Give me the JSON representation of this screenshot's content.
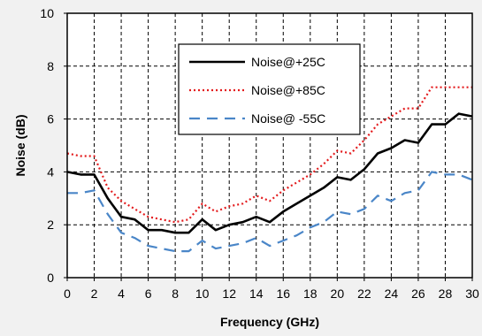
{
  "chart_data": {
    "type": "line",
    "xlabel": "Frequency (GHz)",
    "ylabel": "Noise (dB)",
    "xlim": [
      0,
      30
    ],
    "ylim": [
      0,
      10
    ],
    "x_ticks": [
      "0",
      "2",
      "4",
      "6",
      "8",
      "10",
      "12",
      "14",
      "16",
      "18",
      "20",
      "22",
      "24",
      "26",
      "28",
      "30"
    ],
    "y_ticks": [
      "0",
      "2",
      "4",
      "6",
      "8",
      "10"
    ],
    "grid": true,
    "legend_position": "top-center",
    "series": [
      {
        "name": "Noise@+25C",
        "color": "#000000",
        "style": "solid",
        "x": [
          0,
          1,
          2,
          3,
          4,
          5,
          6,
          7,
          8,
          9,
          10,
          11,
          12,
          13,
          14,
          15,
          16,
          17,
          18,
          19,
          20,
          21,
          22,
          23,
          24,
          25,
          26,
          27,
          28,
          29,
          30
        ],
        "y": [
          4.0,
          3.9,
          3.9,
          3.0,
          2.3,
          2.2,
          1.8,
          1.8,
          1.7,
          1.7,
          2.2,
          1.8,
          2.0,
          2.1,
          2.3,
          2.1,
          2.5,
          2.8,
          3.1,
          3.4,
          3.8,
          3.7,
          4.1,
          4.7,
          4.9,
          5.2,
          5.1,
          5.8,
          5.8,
          6.2,
          6.1
        ]
      },
      {
        "name": "Noise@+85C",
        "color": "#e31a1c",
        "style": "dotted",
        "x": [
          0,
          1,
          2,
          3,
          4,
          5,
          6,
          7,
          8,
          9,
          10,
          11,
          12,
          13,
          14,
          15,
          16,
          17,
          18,
          19,
          20,
          21,
          22,
          23,
          24,
          25,
          26,
          27,
          28,
          29,
          30
        ],
        "y": [
          4.7,
          4.6,
          4.6,
          3.4,
          2.9,
          2.6,
          2.3,
          2.2,
          2.1,
          2.2,
          2.8,
          2.5,
          2.7,
          2.8,
          3.1,
          2.9,
          3.3,
          3.6,
          3.9,
          4.3,
          4.8,
          4.7,
          5.2,
          5.8,
          6.1,
          6.4,
          6.4,
          7.2,
          7.2,
          7.2,
          7.2
        ]
      },
      {
        "name": "Noise@ -55C",
        "color": "#4a86c8",
        "style": "dashed",
        "x": [
          0,
          1,
          2,
          3,
          4,
          5,
          6,
          7,
          8,
          9,
          10,
          11,
          12,
          13,
          14,
          15,
          16,
          17,
          18,
          19,
          20,
          21,
          22,
          23,
          24,
          25,
          26,
          27,
          28,
          29,
          30
        ],
        "y": [
          3.2,
          3.2,
          3.3,
          2.4,
          1.7,
          1.5,
          1.2,
          1.1,
          1.0,
          1.0,
          1.4,
          1.1,
          1.2,
          1.3,
          1.5,
          1.2,
          1.4,
          1.6,
          1.9,
          2.1,
          2.5,
          2.4,
          2.6,
          3.1,
          2.9,
          3.2,
          3.3,
          4.0,
          3.9,
          3.9,
          3.7
        ]
      }
    ]
  }
}
